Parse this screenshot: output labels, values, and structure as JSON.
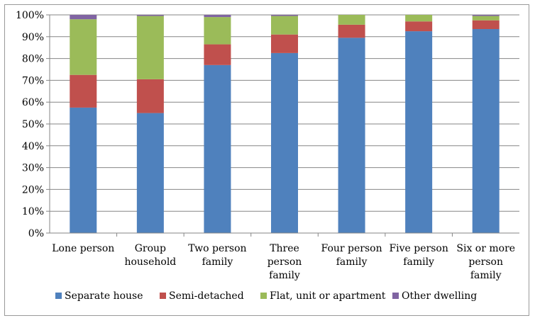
{
  "chart_data": {
    "type": "bar",
    "stacked": true,
    "categories": [
      [
        "Lone person"
      ],
      [
        "Group",
        "household"
      ],
      [
        "Two person",
        "family"
      ],
      [
        "Three",
        "person",
        "family"
      ],
      [
        "Four person",
        "family"
      ],
      [
        "Five person",
        "family"
      ],
      [
        "Six or more",
        "person",
        "family"
      ]
    ],
    "series": [
      {
        "name": "Separate house",
        "color": "#4F81BD",
        "values": [
          57.5,
          55,
          77,
          82.5,
          89.5,
          92.5,
          93.5
        ]
      },
      {
        "name": "Semi-detached",
        "color": "#C0504D",
        "values": [
          15,
          15.5,
          9.5,
          8.5,
          6,
          4.5,
          4
        ]
      },
      {
        "name": "Flat, unit or apartment",
        "color": "#9BBB59",
        "values": [
          25.5,
          29,
          12.5,
          8.5,
          4.5,
          3,
          2
        ]
      },
      {
        "name": "Other dwelling",
        "color": "#8064A2",
        "values": [
          2,
          0.5,
          1,
          0.5,
          0,
          0,
          0.5
        ]
      }
    ],
    "yticks": [
      "0%",
      "10%",
      "20%",
      "30%",
      "40%",
      "50%",
      "60%",
      "70%",
      "80%",
      "90%",
      "100%"
    ],
    "ylim": [
      0,
      100
    ],
    "grid": true,
    "legend_position": "bottom"
  }
}
